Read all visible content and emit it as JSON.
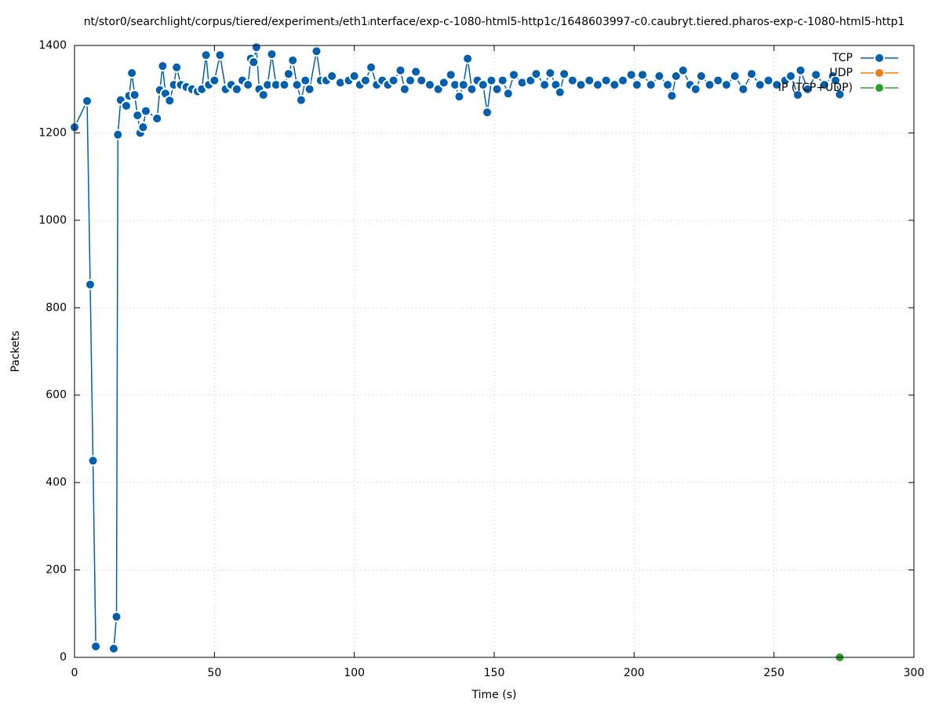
{
  "chart_data": {
    "type": "line",
    "title": "nt/stor0/searchlight/corpus/tiered/experiment₃/eth1ᵢnterface/exp-c-1080-html5-http1c/1648603997-c0.caubryt.tiered.pharos-exp-c-1080-html5-http1",
    "x_label": "Time (s)",
    "y_label": "Packets",
    "xlim": [
      0,
      300
    ],
    "xticks": [
      0,
      50,
      100,
      150,
      200,
      250,
      300
    ],
    "ylim": [
      0,
      1400
    ],
    "yticks": [
      0,
      200,
      400,
      600,
      800,
      1000,
      1200,
      1400
    ],
    "grid": true,
    "legend": "top-right",
    "series": [
      {
        "name": "TCP",
        "color": "#0060ad",
        "x": [
          0,
          4.5,
          5.6,
          6.6,
          7.6,
          11,
          14,
          15,
          15.5,
          16.5,
          18.5,
          19.5,
          20.5,
          21.5,
          22.5,
          23.5,
          24.5,
          25.5,
          29.5,
          30.5,
          31.5,
          32.5,
          34,
          35.5,
          36.5,
          38,
          40,
          42,
          44,
          45.5,
          47,
          48,
          50,
          52,
          54,
          56,
          58,
          60,
          62,
          63,
          64,
          65,
          66,
          67.5,
          69,
          70.5,
          72,
          75,
          76.5,
          78,
          79.5,
          81,
          82.5,
          84,
          86.5,
          88,
          90,
          92,
          95,
          98,
          100,
          102,
          104,
          106,
          108,
          110,
          112,
          114,
          116.5,
          118,
          120,
          122,
          124,
          127,
          130,
          132,
          134.5,
          136,
          137.5,
          139,
          140.5,
          142,
          144,
          146,
          147.5,
          149,
          151,
          153,
          155,
          157,
          160,
          163,
          165,
          168,
          170,
          172,
          173.5,
          175,
          178,
          181,
          184,
          187,
          190,
          193,
          196,
          199,
          201,
          203,
          206,
          209,
          212,
          213.5,
          215,
          217.5,
          220,
          222,
          224,
          227,
          230,
          233,
          236,
          239,
          242,
          245,
          248,
          251,
          254,
          256,
          258.5,
          259.5,
          262,
          265,
          268,
          271,
          272,
          273.5
        ],
        "values": [
          1213,
          1273,
          853,
          450,
          25,
          null,
          20,
          93,
          1196,
          1275,
          1262,
          1285,
          1337,
          1287,
          1240,
          1200,
          1213,
          1250,
          1233,
          1298,
          1353,
          1290,
          1274,
          1310,
          1350,
          1310,
          1305,
          1300,
          1295,
          1300,
          1378,
          1310,
          1320,
          1378,
          1300,
          1310,
          1300,
          1320,
          1310,
          1370,
          1362,
          1396,
          1300,
          1287,
          1310,
          1380,
          1310,
          1310,
          1335,
          1366,
          1310,
          1275,
          1320,
          1300,
          1387,
          1320,
          1320,
          1330,
          1315,
          1320,
          1330,
          1310,
          1320,
          1350,
          1310,
          1320,
          1310,
          1320,
          1343,
          1300,
          1320,
          1340,
          1320,
          1310,
          1300,
          1315,
          1333,
          1310,
          1283,
          1310,
          1370,
          1300,
          1320,
          1310,
          1247,
          1320,
          1300,
          1320,
          1290,
          1333,
          1315,
          1320,
          1335,
          1310,
          1337,
          1310,
          1293,
          1335,
          1320,
          1310,
          1320,
          1310,
          1320,
          1310,
          1320,
          1333,
          1310,
          1333,
          1310,
          1330,
          1310,
          1285,
          1330,
          1343,
          1310,
          1300,
          1330,
          1310,
          1320,
          1310,
          1330,
          1300,
          1335,
          1310,
          1320,
          1310,
          1320,
          1330,
          1287,
          1343,
          1300,
          1333,
          1310,
          1330,
          1320,
          1288
        ]
      },
      {
        "name": "UDP",
        "color": "#ee7f14",
        "x": [],
        "values": []
      },
      {
        "name": "IP (TCP+UDP)",
        "color": "#2ca02c",
        "x": [
          273.5
        ],
        "values": [
          0
        ]
      }
    ]
  }
}
